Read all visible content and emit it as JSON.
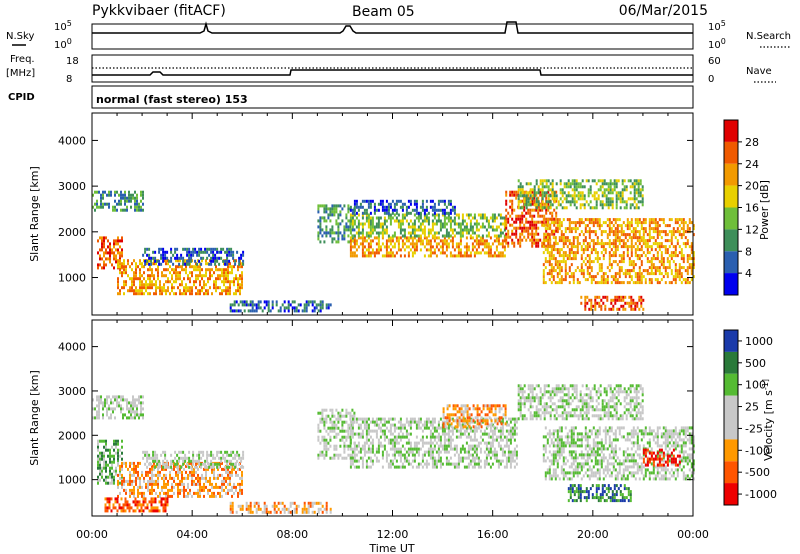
{
  "header": {
    "station": "Pykkvibaer (fitACF)",
    "beam": "Beam 05",
    "date": "06/Mar/2015"
  },
  "strip_labels": {
    "nsky": "N.Sky",
    "freq_line1": "Freq.",
    "freq_line2": "[MHz]",
    "cpid": "CPID",
    "nsearch": "N.Search",
    "nave": "Nave",
    "cpid_value": "normal (fast stereo) 153"
  },
  "strip_ticks": {
    "noise_left": [
      "10^5",
      "10^0"
    ],
    "noise_right": [
      "10^5",
      "10^0"
    ],
    "freq_left": [
      "18",
      "8"
    ],
    "nave_right": [
      "60",
      "0"
    ]
  },
  "colors": {
    "power": [
      "#0000ee",
      "#2a5fb0",
      "#3e8f5a",
      "#6fbf3a",
      "#e8d000",
      "#f29a00",
      "#f05a00",
      "#e00000"
    ],
    "velocity": [
      "#1a3aaa",
      "#2a7a3a",
      "#55bb33",
      "#c8c8c8",
      "#c8c8c8",
      "#ff9900",
      "#ff5500",
      "#ee0000"
    ]
  },
  "chart_data": [
    {
      "type": "heatmap",
      "title": "Power [dB]",
      "xlabel": "Time UT",
      "ylabel": "Slant Range [km]",
      "x_ticks": [
        "00:00",
        "04:00",
        "08:00",
        "12:00",
        "16:00",
        "20:00",
        "00:00"
      ],
      "y_ticks": [
        "1000",
        "2000",
        "3000",
        "4000"
      ],
      "xlim": [
        0,
        24
      ],
      "ylim": [
        180,
        4600
      ],
      "colorbar_label": "Power [dB]",
      "colorbar_ticks": [
        "4",
        "8",
        "12",
        "16",
        "20",
        "24",
        "28"
      ],
      "bands": [
        {
          "t": [
            0.2,
            1.2
          ],
          "r": [
            1200,
            1900
          ],
          "level": 6
        },
        {
          "t": [
            0.0,
            2.0
          ],
          "r": [
            2500,
            2900
          ],
          "level": 2
        },
        {
          "t": [
            1.0,
            6.0
          ],
          "r": [
            650,
            1400
          ],
          "level": 5
        },
        {
          "t": [
            2.0,
            6.0
          ],
          "r": [
            1300,
            1650
          ],
          "level": 1
        },
        {
          "t": [
            5.5,
            9.5
          ],
          "r": [
            250,
            500
          ],
          "level": 1
        },
        {
          "t": [
            9.0,
            10.5
          ],
          "r": [
            1800,
            2600
          ],
          "level": 2
        },
        {
          "t": [
            10.3,
            16.5
          ],
          "r": [
            1450,
            1900
          ],
          "level": 5
        },
        {
          "t": [
            10.3,
            16.5
          ],
          "r": [
            1900,
            2400
          ],
          "level": 3
        },
        {
          "t": [
            10.3,
            14.5
          ],
          "r": [
            2400,
            2700
          ],
          "level": 1
        },
        {
          "t": [
            16.5,
            18.5
          ],
          "r": [
            1700,
            2900
          ],
          "level": 6
        },
        {
          "t": [
            17.0,
            22.0
          ],
          "r": [
            2500,
            3150
          ],
          "level": 3
        },
        {
          "t": [
            18.0,
            24.0
          ],
          "r": [
            900,
            2300
          ],
          "level": 5
        },
        {
          "t": [
            19.5,
            22.0
          ],
          "r": [
            300,
            600
          ],
          "level": 6
        }
      ]
    },
    {
      "type": "heatmap",
      "title": "Velocity [m s^-1]",
      "xlabel": "Time UT",
      "ylabel": "Slant Range [km]",
      "x_ticks": [
        "00:00",
        "04:00",
        "08:00",
        "12:00",
        "16:00",
        "20:00",
        "00:00"
      ],
      "y_ticks": [
        "1000",
        "2000",
        "3000",
        "4000"
      ],
      "xlim": [
        0,
        24
      ],
      "ylim": [
        180,
        4600
      ],
      "colorbar_label": "Velocity [m s^-1]",
      "colorbar_ticks": [
        "1000",
        "500",
        "100",
        "25",
        "-25",
        "-100",
        "-500",
        "-1000"
      ],
      "bands": [
        {
          "t": [
            0.0,
            2.0
          ],
          "r": [
            2400,
            2900
          ],
          "level": 3
        },
        {
          "t": [
            0.2,
            1.2
          ],
          "r": [
            900,
            1900
          ],
          "level": 2
        },
        {
          "t": [
            1.0,
            6.0
          ],
          "r": [
            650,
            1400
          ],
          "level": 5
        },
        {
          "t": [
            2.0,
            6.0
          ],
          "r": [
            1300,
            1650
          ],
          "level": 3
        },
        {
          "t": [
            0.5,
            3.0
          ],
          "r": [
            300,
            600
          ],
          "level": 6
        },
        {
          "t": [
            5.5,
            9.5
          ],
          "r": [
            250,
            500
          ],
          "level": 5
        },
        {
          "t": [
            9.0,
            10.5
          ],
          "r": [
            1500,
            2600
          ],
          "level": 3
        },
        {
          "t": [
            10.3,
            17.0
          ],
          "r": [
            1300,
            2400
          ],
          "level": 3
        },
        {
          "t": [
            14.0,
            16.5
          ],
          "r": [
            2200,
            2700
          ],
          "level": 5
        },
        {
          "t": [
            17.0,
            22.0
          ],
          "r": [
            2400,
            3150
          ],
          "level": 3
        },
        {
          "t": [
            18.0,
            24.0
          ],
          "r": [
            1000,
            2200
          ],
          "level": 3
        },
        {
          "t": [
            19.0,
            21.5
          ],
          "r": [
            500,
            900
          ],
          "level": 1
        },
        {
          "t": [
            22.0,
            23.5
          ],
          "r": [
            1300,
            1700
          ],
          "level": 7
        }
      ]
    }
  ]
}
